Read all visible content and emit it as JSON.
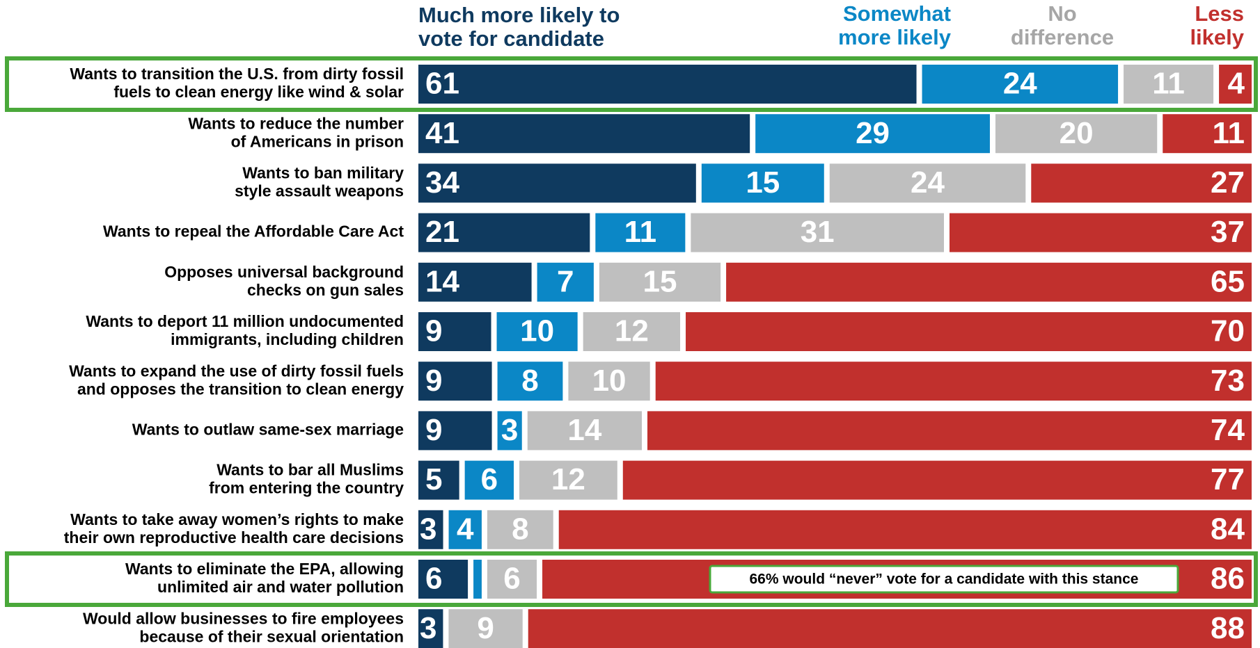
{
  "chart_data": {
    "type": "stacked-bar",
    "orientation": "horizontal",
    "categories": [
      [
        "Wants to transition the U.S. from dirty fossil",
        "fuels to clean energy like wind & solar"
      ],
      [
        "Wants to reduce the number",
        "of Americans in prison"
      ],
      [
        "Wants to ban military",
        "style assault weapons"
      ],
      [
        "Wants to repeal the Affordable Care Act"
      ],
      [
        "Opposes universal background",
        "checks on gun sales"
      ],
      [
        "Wants to deport 11 million undocumented",
        "immigrants, including children"
      ],
      [
        "Wants to expand the use of dirty fossil fuels",
        "and opposes the transition to clean energy"
      ],
      [
        "Wants to outlaw same-sex marriage"
      ],
      [
        "Wants to bar all Muslims",
        "from entering the country"
      ],
      [
        "Wants to take away women’s rights to make",
        "their own reproductive health care decisions"
      ],
      [
        "Wants to eliminate the EPA, allowing",
        "unlimited air and water pollution"
      ],
      [
        "Would allow businesses to fire employees",
        "because of their sexual orientation"
      ]
    ],
    "series": [
      {
        "name": [
          "Much more likely to",
          "vote for candidate"
        ],
        "color": "#0f3a5f",
        "values": [
          61,
          41,
          34,
          21,
          14,
          9,
          9,
          9,
          5,
          3,
          6,
          3
        ]
      },
      {
        "name": [
          "Somewhat",
          "more likely"
        ],
        "color": "#0b87c6",
        "values": [
          24,
          29,
          15,
          11,
          7,
          10,
          8,
          3,
          6,
          4,
          1,
          0
        ],
        "value_labels": [
          "24",
          "29",
          "15",
          "11",
          "7",
          "10",
          "8",
          "3",
          "6",
          "4",
          null,
          null
        ]
      },
      {
        "name": [
          "No",
          "difference"
        ],
        "color": "#bfbfbf",
        "values": [
          11,
          20,
          24,
          31,
          15,
          12,
          10,
          14,
          12,
          8,
          6,
          9
        ]
      },
      {
        "name": [
          "Less",
          "likely"
        ],
        "color": "#c1302d",
        "values": [
          4,
          11,
          27,
          37,
          65,
          70,
          73,
          74,
          77,
          84,
          86,
          88
        ]
      }
    ],
    "highlight": [
      0,
      10
    ],
    "highlight_color": "#4aa83a",
    "annotation": {
      "row": 10,
      "text": "66% would “never” vote for a candidate with this stance"
    }
  }
}
